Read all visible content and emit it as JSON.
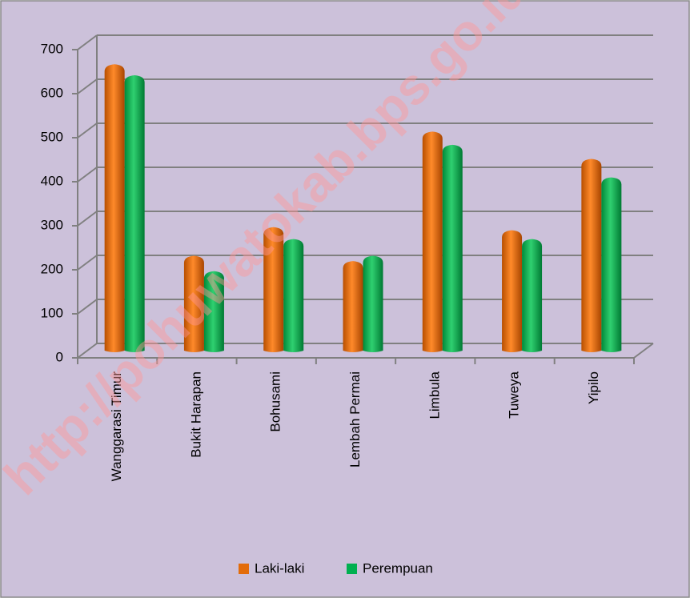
{
  "chart_data": {
    "type": "bar3d",
    "categories": [
      "Wanggarasi Timur",
      "Bukit Harapan",
      "Bohusami",
      "Lembah Permai",
      "Limbula",
      "Tuweya",
      "Yipilo"
    ],
    "series": [
      {
        "name": "Laki-laki",
        "color": "#e36c0a",
        "values": [
          645,
          210,
          275,
          198,
          492,
          268,
          430
        ]
      },
      {
        "name": "Perempuan",
        "color": "#00b050",
        "values": [
          620,
          175,
          248,
          210,
          462,
          248,
          388
        ]
      }
    ],
    "ylim": [
      0,
      700
    ],
    "yticks": [
      0,
      100,
      200,
      300,
      400,
      500,
      600,
      700
    ],
    "grid": true,
    "legend": "bottom",
    "watermark": "http://pohuwatokab.bps.go.id"
  }
}
